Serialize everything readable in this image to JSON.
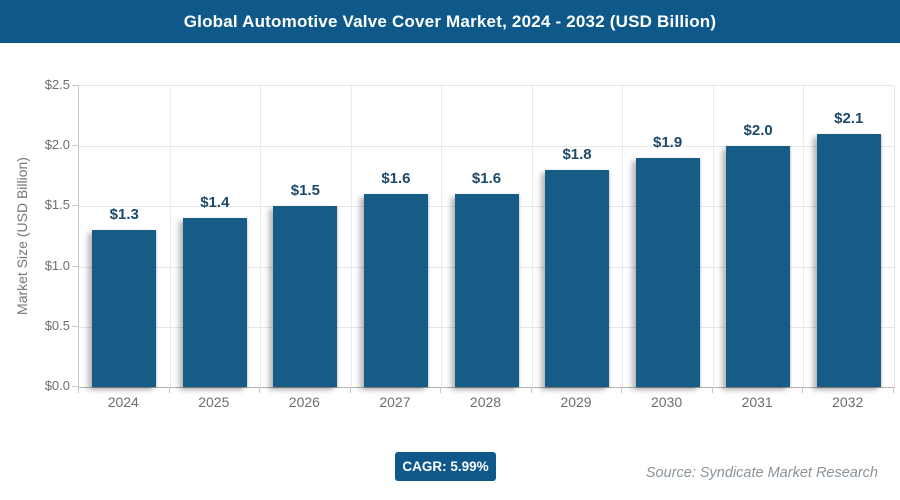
{
  "header": {
    "title": "Global Automotive Valve Cover Market, 2024 - 2032 (USD Billion)"
  },
  "chart_data": {
    "type": "bar",
    "title": "Global Automotive Valve Cover Market, 2024 - 2032 (USD Billion)",
    "categories": [
      "2024",
      "2025",
      "2026",
      "2027",
      "2028",
      "2029",
      "2030",
      "2031",
      "2032"
    ],
    "values": [
      1.3,
      1.4,
      1.5,
      1.6,
      1.6,
      1.8,
      1.9,
      2.0,
      2.1
    ],
    "bar_labels": [
      "$1.3",
      "$1.4",
      "$1.5",
      "$1.6",
      "$1.6",
      "$1.8",
      "$1.9",
      "$2.0",
      "$2.1"
    ],
    "xlabel": "",
    "ylabel": "Market Size (USD Billion)",
    "ylim": [
      0,
      2.5
    ],
    "ytick_step": 0.5,
    "ytick_labels": [
      "$0.0",
      "$0.5",
      "$1.0",
      "$1.5",
      "$2.0",
      "$2.5"
    ],
    "grid": true,
    "legend": "none",
    "colors": {
      "bar": "#175C87",
      "header_bg": "#0E598A",
      "bar_label": "#1D4A6A",
      "axis_text": "#6e6e6e",
      "gridline": "#e7e7e7"
    }
  },
  "footer": {
    "cagr_label": "CAGR: 5.99%",
    "source": "Source: Syndicate Market Research"
  }
}
